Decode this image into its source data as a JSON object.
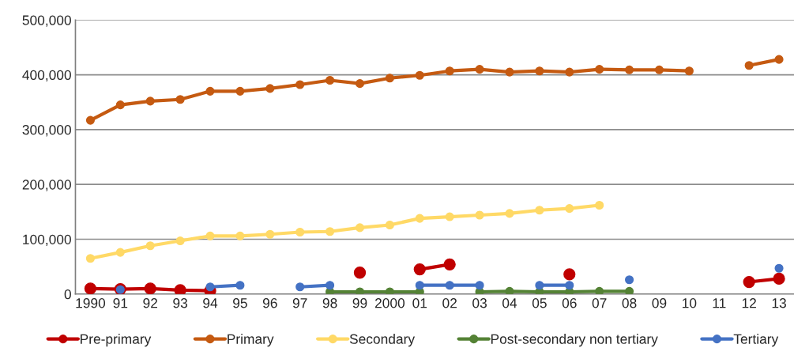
{
  "chart_data": {
    "type": "line",
    "categories": [
      "1990",
      "91",
      "92",
      "93",
      "94",
      "95",
      "96",
      "97",
      "98",
      "99",
      "2000",
      "01",
      "02",
      "03",
      "04",
      "05",
      "06",
      "07",
      "08",
      "09",
      "10",
      "11",
      "12",
      "13"
    ],
    "series": [
      {
        "name": "Pre-primary",
        "color": "#c00000",
        "values": [
          10000,
          9000,
          10000,
          7000,
          6000,
          null,
          null,
          null,
          null,
          39000,
          null,
          45000,
          54000,
          null,
          null,
          null,
          36000,
          null,
          null,
          null,
          null,
          null,
          22000,
          28000
        ]
      },
      {
        "name": "Primary",
        "color": "#c55a11",
        "values": [
          317000,
          345000,
          352000,
          355000,
          370000,
          370000,
          375000,
          382000,
          390000,
          384000,
          394000,
          399000,
          407000,
          410000,
          405000,
          407000,
          405000,
          410000,
          409000,
          409000,
          407000,
          null,
          417000,
          428000
        ]
      },
      {
        "name": "Secondary",
        "color": "#ffd966",
        "values": [
          65000,
          76000,
          88000,
          97000,
          106000,
          106000,
          109000,
          113000,
          114000,
          121000,
          126000,
          138000,
          141000,
          144000,
          147000,
          153000,
          156000,
          162000,
          null,
          null,
          null,
          null,
          null,
          null
        ]
      },
      {
        "name": "Post-secondary non tertiary",
        "color": "#548235",
        "values": [
          null,
          null,
          null,
          null,
          null,
          null,
          null,
          null,
          4000,
          4000,
          4000,
          4000,
          null,
          4000,
          5000,
          4000,
          4000,
          5000,
          5000,
          null,
          null,
          null,
          null,
          null
        ]
      },
      {
        "name": "Tertiary",
        "color": "#4472c4",
        "values": [
          null,
          8000,
          null,
          null,
          13000,
          16000,
          null,
          13000,
          16000,
          null,
          null,
          16000,
          16000,
          16000,
          null,
          16000,
          16000,
          null,
          26000,
          null,
          null,
          null,
          null,
          47000
        ]
      }
    ],
    "ylim": [
      0,
      500000
    ],
    "yticks": [
      {
        "value": 0,
        "label": "0"
      },
      {
        "value": 100000,
        "label": "100,000"
      },
      {
        "value": 200000,
        "label": "200,000"
      },
      {
        "value": 300000,
        "label": "300,000"
      },
      {
        "value": 400000,
        "label": "400,000"
      },
      {
        "value": 500000,
        "label": "500,000"
      }
    ],
    "grid": "y",
    "legend": "bottom",
    "marker": "circle",
    "line_style": "solid"
  }
}
